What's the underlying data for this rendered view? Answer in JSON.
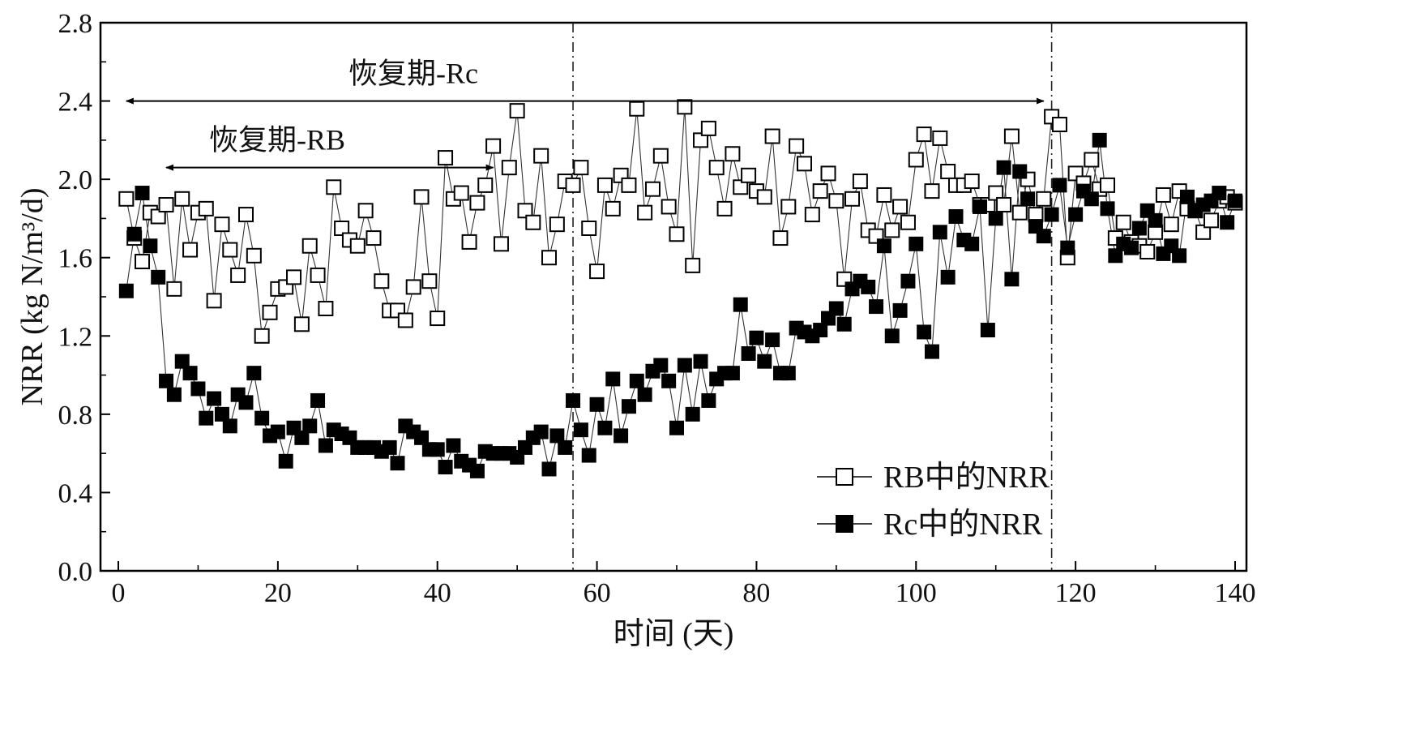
{
  "chart_data": {
    "type": "scatter",
    "xlabel": "时间 (天)",
    "ylabel": "NRR (kg N/m³/d)",
    "xlim": [
      0,
      140
    ],
    "ylim": [
      0,
      2.8
    ],
    "x_ticks": [
      "0",
      "20",
      "40",
      "60",
      "80",
      "100",
      "120",
      "140"
    ],
    "y_ticks": [
      "0.0",
      "0.4",
      "0.8",
      "1.2",
      "1.6",
      "2.0",
      "2.4",
      "2.8"
    ],
    "grid": false,
    "legend_position": "bottom-right",
    "phase_lines": [
      57,
      117
    ],
    "annotations": [
      {
        "text": "恢复期-Rc",
        "x_start": 1,
        "x_end": 116,
        "y": 2.4
      },
      {
        "text": "恢复期-RB",
        "x_start": 6,
        "x_end": 47,
        "y": 2.06
      }
    ],
    "series": [
      {
        "name": "RB中的NRR",
        "marker": "open-square",
        "color": "#000000",
        "x": [
          1,
          2,
          3,
          4,
          5,
          6,
          7,
          8,
          9,
          10,
          11,
          12,
          13,
          14,
          15,
          16,
          17,
          18,
          19,
          20,
          21,
          22,
          23,
          24,
          25,
          26,
          27,
          28,
          29,
          30,
          31,
          32,
          33,
          34,
          35,
          36,
          37,
          38,
          39,
          40,
          41,
          42,
          43,
          44,
          45,
          46,
          47,
          48,
          49,
          50,
          51,
          52,
          53,
          54,
          55,
          56,
          57,
          58,
          59,
          60,
          61,
          62,
          63,
          64,
          65,
          66,
          67,
          68,
          69,
          70,
          71,
          72,
          73,
          74,
          75,
          76,
          77,
          78,
          79,
          80,
          81,
          82,
          83,
          84,
          85,
          86,
          87,
          88,
          89,
          90,
          91,
          92,
          93,
          94,
          95,
          96,
          97,
          98,
          99,
          100,
          101,
          102,
          103,
          104,
          105,
          106,
          107,
          108,
          109,
          110,
          111,
          112,
          113,
          114,
          115,
          116,
          117,
          118,
          119,
          120,
          121,
          122,
          123,
          124,
          125,
          126,
          127,
          128,
          129,
          130,
          131,
          132,
          133,
          134,
          135,
          136,
          137,
          138,
          139,
          140
        ],
        "values": [
          1.9,
          1.7,
          1.58,
          1.83,
          1.81,
          1.87,
          1.44,
          1.9,
          1.64,
          1.83,
          1.85,
          1.38,
          1.77,
          1.64,
          1.51,
          1.82,
          1.61,
          1.2,
          1.32,
          1.44,
          1.45,
          1.5,
          1.26,
          1.66,
          1.51,
          1.34,
          1.96,
          1.75,
          1.69,
          1.66,
          1.84,
          1.7,
          1.48,
          1.33,
          1.33,
          1.28,
          1.45,
          1.91,
          1.48,
          1.29,
          2.11,
          1.9,
          1.93,
          1.68,
          1.88,
          1.97,
          2.17,
          1.67,
          2.06,
          2.35,
          1.84,
          1.78,
          2.12,
          1.6,
          1.77,
          1.99,
          1.97,
          2.06,
          1.75,
          1.53,
          1.97,
          1.85,
          2.02,
          1.97,
          2.36,
          1.83,
          1.95,
          2.12,
          1.86,
          1.72,
          2.37,
          1.56,
          2.2,
          2.26,
          2.06,
          1.85,
          2.13,
          1.96,
          2.02,
          1.94,
          1.91,
          2.22,
          1.7,
          1.86,
          2.17,
          2.08,
          1.82,
          1.94,
          2.03,
          1.89,
          1.49,
          1.9,
          1.99,
          1.74,
          1.71,
          1.92,
          1.74,
          1.86,
          1.78,
          2.1,
          2.23,
          1.94,
          2.21,
          2.04,
          1.97,
          1.97,
          1.99,
          1.87,
          1.87,
          1.93,
          1.87,
          2.22,
          1.83,
          2.0,
          1.82,
          1.9,
          2.32,
          2.28,
          1.6,
          2.03,
          1.98,
          2.1,
          1.95,
          1.97,
          1.7,
          1.78,
          1.68,
          1.66,
          1.63,
          1.73,
          1.92,
          1.77,
          1.94,
          1.85,
          1.84,
          1.73,
          1.79,
          1.89,
          1.91,
          1.88
        ]
      },
      {
        "name": "Rc中的NRR",
        "marker": "filled-square",
        "color": "#000000",
        "x": [
          1,
          2,
          3,
          4,
          5,
          6,
          7,
          8,
          9,
          10,
          11,
          12,
          13,
          14,
          15,
          16,
          17,
          18,
          19,
          20,
          21,
          22,
          23,
          24,
          25,
          26,
          27,
          28,
          29,
          30,
          31,
          32,
          33,
          34,
          35,
          36,
          37,
          38,
          39,
          40,
          41,
          42,
          43,
          44,
          45,
          46,
          47,
          48,
          49,
          50,
          51,
          52,
          53,
          54,
          55,
          56,
          57,
          58,
          59,
          60,
          61,
          62,
          63,
          64,
          65,
          66,
          67,
          68,
          69,
          70,
          71,
          72,
          73,
          74,
          75,
          76,
          77,
          78,
          79,
          80,
          81,
          82,
          83,
          84,
          85,
          86,
          87,
          88,
          89,
          90,
          91,
          92,
          93,
          94,
          95,
          96,
          97,
          98,
          99,
          100,
          101,
          102,
          103,
          104,
          105,
          106,
          107,
          108,
          109,
          110,
          111,
          112,
          113,
          114,
          115,
          116,
          117,
          118,
          119,
          120,
          121,
          122,
          123,
          124,
          125,
          126,
          127,
          128,
          129,
          130,
          131,
          132,
          133,
          134,
          135,
          136,
          137,
          138,
          139,
          140
        ],
        "values": [
          1.43,
          1.72,
          1.93,
          1.66,
          1.5,
          0.97,
          0.9,
          1.07,
          1.01,
          0.93,
          0.78,
          0.88,
          0.8,
          0.74,
          0.9,
          0.86,
          1.01,
          0.78,
          0.69,
          0.71,
          0.56,
          0.73,
          0.68,
          0.74,
          0.87,
          0.64,
          0.72,
          0.7,
          0.68,
          0.63,
          0.63,
          0.63,
          0.61,
          0.63,
          0.55,
          0.74,
          0.71,
          0.68,
          0.62,
          0.62,
          0.53,
          0.64,
          0.56,
          0.54,
          0.51,
          0.61,
          0.6,
          0.6,
          0.6,
          0.58,
          0.63,
          0.68,
          0.71,
          0.52,
          0.69,
          0.63,
          0.87,
          0.72,
          0.59,
          0.85,
          0.73,
          0.98,
          0.69,
          0.84,
          0.97,
          0.9,
          1.02,
          1.05,
          0.97,
          0.73,
          1.05,
          0.8,
          1.07,
          0.87,
          0.98,
          1.01,
          1.01,
          1.36,
          1.11,
          1.19,
          1.07,
          1.18,
          1.01,
          1.01,
          1.24,
          1.22,
          1.2,
          1.23,
          1.29,
          1.34,
          1.26,
          1.44,
          1.48,
          1.45,
          1.35,
          1.66,
          1.2,
          1.33,
          1.48,
          1.67,
          1.22,
          1.12,
          1.73,
          1.5,
          1.81,
          1.69,
          1.67,
          1.86,
          1.23,
          1.8,
          2.06,
          1.49,
          2.04,
          1.9,
          1.76,
          1.71,
          1.82,
          1.97,
          1.65,
          1.82,
          1.94,
          1.9,
          2.2,
          1.85,
          1.61,
          1.67,
          1.65,
          1.75,
          1.84,
          1.79,
          1.62,
          1.66,
          1.61,
          1.91,
          1.84,
          1.87,
          1.89,
          1.93,
          1.78,
          1.89
        ]
      }
    ]
  }
}
